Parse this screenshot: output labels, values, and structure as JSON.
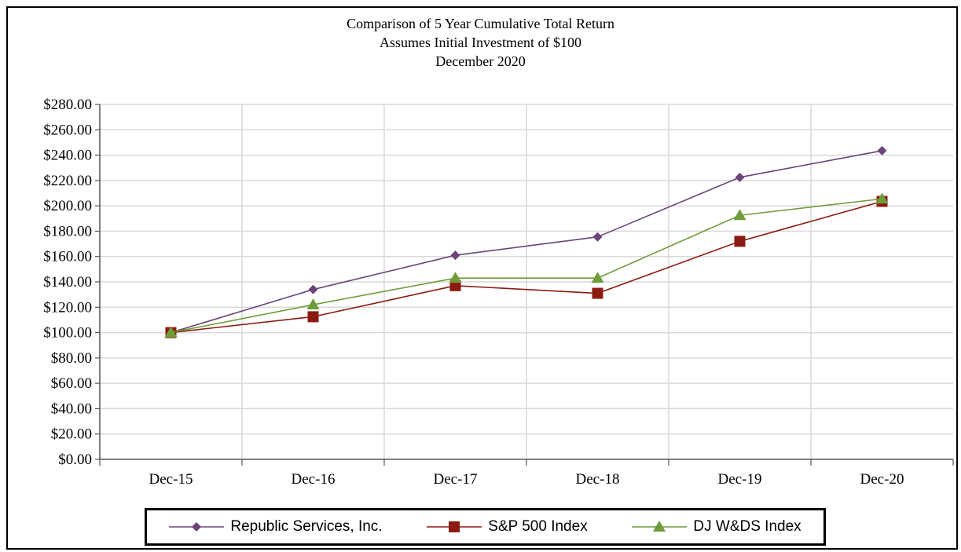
{
  "chart_data": {
    "type": "line",
    "title": [
      "Comparison of 5 Year Cumulative Total Return",
      "Assumes Initial Investment of $100",
      "December 2020"
    ],
    "categories": [
      "Dec-15",
      "Dec-16",
      "Dec-17",
      "Dec-18",
      "Dec-19",
      "Dec-20"
    ],
    "yticks": [
      "$0.00",
      "$20.00",
      "$40.00",
      "$60.00",
      "$80.00",
      "$100.00",
      "$120.00",
      "$140.00",
      "$160.00",
      "$180.00",
      "$200.00",
      "$220.00",
      "$240.00",
      "$260.00",
      "$280.00"
    ],
    "ylim": [
      0,
      280
    ],
    "grid": true,
    "legend_position": "bottom",
    "series": [
      {
        "name": "Republic Services, Inc.",
        "marker": "diamond",
        "color": "#6b4577",
        "values": [
          100,
          134,
          161,
          175.5,
          222.5,
          243.5
        ]
      },
      {
        "name": "S&P 500 Index",
        "marker": "square",
        "color": "#8b1a10",
        "values": [
          100,
          112.5,
          137,
          131,
          172,
          203.5
        ]
      },
      {
        "name": "DJ W&DS Index",
        "marker": "triangle",
        "color": "#6f9c3a",
        "values": [
          100,
          122,
          143,
          143,
          192.5,
          205.5
        ]
      }
    ]
  }
}
